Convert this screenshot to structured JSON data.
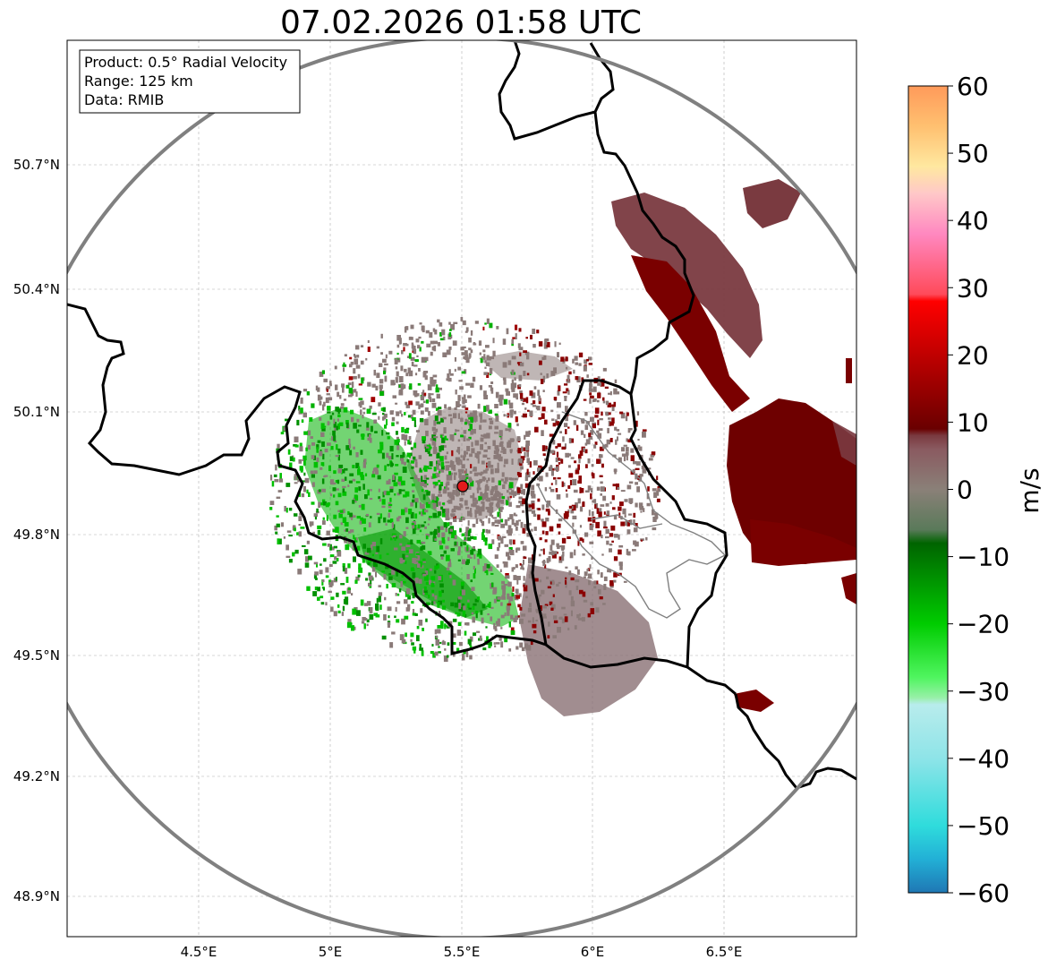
{
  "title": "07.02.2026 01:58 UTC",
  "info_box": {
    "product": "Product: 0.5° Radial Velocity",
    "range": "Range: 125 km",
    "data": "Data: RMIB"
  },
  "map": {
    "lon_range": [
      4.0,
      7.0
    ],
    "lat_range": [
      48.8,
      51.0
    ],
    "lon_ticks": [
      {
        "value": 4.5,
        "label": "4.5°E"
      },
      {
        "value": 5.0,
        "label": "5°E"
      },
      {
        "value": 5.5,
        "label": "5.5°E"
      },
      {
        "value": 6.0,
        "label": "6°E"
      },
      {
        "value": 6.5,
        "label": "6.5°E"
      }
    ],
    "lat_ticks": [
      {
        "value": 50.7,
        "label": "50.7°N"
      },
      {
        "value": 50.4,
        "label": "50.4°N"
      },
      {
        "value": 50.1,
        "label": "50.1°N"
      },
      {
        "value": 49.8,
        "label": "49.8°N"
      },
      {
        "value": 49.5,
        "label": "49.5°N"
      },
      {
        "value": 49.2,
        "label": "49.2°N"
      },
      {
        "value": 48.9,
        "label": "48.9°N"
      }
    ],
    "radar_site": {
      "lon": 5.505,
      "lat": 49.915
    },
    "radar_range_km": 125
  },
  "colorbar": {
    "label": "m/s",
    "min": -60,
    "max": 60,
    "ticks": [
      {
        "value": 60,
        "label": "60"
      },
      {
        "value": 50,
        "label": "50"
      },
      {
        "value": 40,
        "label": "40"
      },
      {
        "value": 30,
        "label": "30"
      },
      {
        "value": 20,
        "label": "20"
      },
      {
        "value": 10,
        "label": "10"
      },
      {
        "value": 0,
        "label": "0"
      },
      {
        "value": -10,
        "label": "−10"
      },
      {
        "value": -20,
        "label": "−20"
      },
      {
        "value": -30,
        "label": "−30"
      },
      {
        "value": -40,
        "label": "−40"
      },
      {
        "value": -50,
        "label": "−50"
      },
      {
        "value": -60,
        "label": "−60"
      }
    ],
    "stops": [
      {
        "v": -60,
        "color": "#1f77b4"
      },
      {
        "v": -55,
        "color": "#22b0d6"
      },
      {
        "v": -50,
        "color": "#2fdcdc"
      },
      {
        "v": -40,
        "color": "#8ee4e8"
      },
      {
        "v": -32,
        "color": "#b8ecec"
      },
      {
        "v": -31,
        "color": "#98f0a8"
      },
      {
        "v": -28,
        "color": "#50f560"
      },
      {
        "v": -20,
        "color": "#00cc00"
      },
      {
        "v": -8,
        "color": "#006400"
      },
      {
        "v": -6,
        "color": "#5a7a5a"
      },
      {
        "v": 0,
        "color": "#8a8078"
      },
      {
        "v": 6,
        "color": "#8a5a60"
      },
      {
        "v": 8,
        "color": "#7a3a40"
      },
      {
        "v": 9,
        "color": "#6a0000"
      },
      {
        "v": 18,
        "color": "#b00000"
      },
      {
        "v": 28,
        "color": "#ff0000"
      },
      {
        "v": 29,
        "color": "#ff4a5a"
      },
      {
        "v": 38,
        "color": "#ff88c0"
      },
      {
        "v": 44,
        "color": "#ffc8c8"
      },
      {
        "v": 48,
        "color": "#ffe8a0"
      },
      {
        "v": 54,
        "color": "#ffc070"
      },
      {
        "v": 60,
        "color": "#ff9a5a"
      }
    ]
  },
  "colors": {
    "border": "#000000",
    "region_border": "#808080",
    "range_ring": "#808080",
    "grid": "#b0b0b0",
    "site_marker": "#e31a1c",
    "approaching": "#00b000",
    "receding": "#7a0000",
    "near_zero": "#8a7a78"
  }
}
